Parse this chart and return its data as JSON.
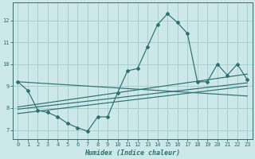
{
  "xlabel": "Humidex (Indice chaleur)",
  "ylabel": "",
  "xlim": [
    -0.5,
    23.5
  ],
  "ylim": [
    6.6,
    12.8
  ],
  "xticks": [
    0,
    1,
    2,
    3,
    4,
    5,
    6,
    7,
    8,
    9,
    10,
    11,
    12,
    13,
    14,
    15,
    16,
    17,
    18,
    19,
    20,
    21,
    22,
    23
  ],
  "yticks": [
    7,
    8,
    9,
    10,
    11,
    12
  ],
  "bg_color": "#cce8e8",
  "line_color": "#2d7070",
  "grid_color": "#a8d0d0",
  "main_x": [
    0,
    1,
    2,
    3,
    4,
    5,
    6,
    7,
    8,
    9,
    10,
    11,
    12,
    13,
    14,
    15,
    16,
    17,
    18,
    19,
    20,
    21,
    22,
    23
  ],
  "main_y": [
    9.2,
    8.8,
    7.9,
    7.8,
    7.6,
    7.3,
    7.1,
    6.95,
    7.6,
    7.6,
    8.7,
    9.7,
    9.8,
    10.8,
    11.8,
    12.3,
    11.9,
    11.4,
    9.2,
    9.2,
    10.0,
    9.5,
    10.0,
    9.3
  ],
  "reg_lines": [
    {
      "x0": 0,
      "y0": 9.2,
      "x1": 23,
      "y1": 8.55
    },
    {
      "x0": 0,
      "y0": 8.05,
      "x1": 23,
      "y1": 9.55
    },
    {
      "x0": 0,
      "y0": 7.95,
      "x1": 23,
      "y1": 9.15
    },
    {
      "x0": 0,
      "y0": 7.75,
      "x1": 23,
      "y1": 9.0
    }
  ],
  "marker_x": [
    0,
    1,
    2,
    3,
    4,
    5,
    6,
    7,
    8,
    9,
    10,
    11,
    12,
    13,
    14,
    15,
    16,
    17,
    18,
    19,
    20,
    21,
    22,
    23
  ],
  "marker_y": [
    9.2,
    8.8,
    7.9,
    7.8,
    7.6,
    7.3,
    7.1,
    6.95,
    7.6,
    7.6,
    8.7,
    9.7,
    9.8,
    10.8,
    11.8,
    12.3,
    11.9,
    11.4,
    9.2,
    9.2,
    10.0,
    9.5,
    10.0,
    9.3
  ]
}
